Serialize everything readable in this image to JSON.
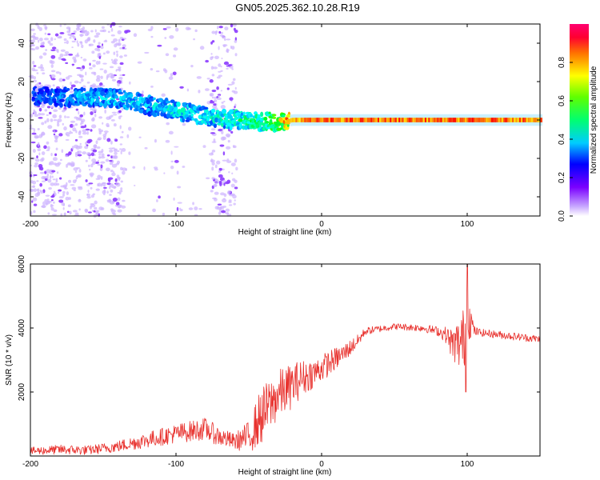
{
  "title": "GN05.2025.362.10.28.R19",
  "colors": {
    "snr_line": "#e8322e",
    "frame": "#000000"
  },
  "chart_data": [
    {
      "type": "heatmap",
      "xlabel": "Height of straight line (km)",
      "ylabel": "Frequency (Hz)",
      "xlim": [
        -200,
        150
      ],
      "ylim": [
        -50,
        50
      ],
      "x_ticks": [
        -200,
        -100,
        0,
        100
      ],
      "y_ticks": [
        -40,
        -20,
        0,
        20,
        40
      ],
      "colorbar": {
        "label": "Normalized spectral amplitude",
        "range": [
          0.0,
          1.0
        ],
        "ticks": [
          0.0,
          0.2,
          0.4,
          0.6,
          0.8
        ],
        "colormap": "hsv-reversed (violet=0 to red/magenta=1)"
      },
      "ridge": {
        "x": [
          -200,
          -180,
          -160,
          -140,
          -120,
          -100,
          -80,
          -60,
          -40,
          -30,
          -20,
          0,
          20,
          50,
          100,
          150
        ],
        "freq": [
          13,
          12,
          12,
          11,
          8,
          5,
          2,
          0,
          -1,
          -1,
          0,
          0,
          0,
          0,
          0,
          0
        ],
        "amplitude": [
          0.2,
          0.25,
          0.3,
          0.3,
          0.3,
          0.35,
          0.35,
          0.4,
          0.45,
          0.6,
          0.9,
          0.95,
          0.95,
          0.95,
          0.95,
          0.95
        ]
      }
    },
    {
      "type": "line",
      "xlabel": "Height of straight line (km)",
      "ylabel": "SNR (10 * v/v)",
      "xlim": [
        -200,
        150
      ],
      "ylim": [
        0,
        6000
      ],
      "x_ticks": [
        -200,
        -100,
        0,
        100
      ],
      "y_ticks": [
        2000,
        4000,
        6000
      ],
      "series": [
        {
          "x": [
            -200,
            -180,
            -160,
            -140,
            -120,
            -100,
            -80,
            -70,
            -60,
            -50,
            -42,
            -30,
            -20,
            -15,
            -5,
            5,
            15,
            25,
            30,
            50,
            70,
            80,
            85,
            90,
            95,
            98,
            100,
            105,
            110,
            120,
            130,
            140,
            150
          ],
          "y": [
            150,
            200,
            180,
            300,
            500,
            700,
            850,
            600,
            450,
            600,
            1200,
            1900,
            2200,
            2400,
            2600,
            2900,
            3200,
            3600,
            3900,
            4050,
            4000,
            3900,
            3800,
            3500,
            3500,
            3700,
            4500,
            3900,
            3850,
            3800,
            3750,
            3700,
            3650
          ],
          "noise": [
            120,
            150,
            150,
            180,
            250,
            300,
            350,
            300,
            250,
            500,
            900,
            800,
            700,
            600,
            450,
            400,
            300,
            200,
            120,
            100,
            120,
            150,
            250,
            500,
            900,
            1000,
            900,
            150,
            120,
            120,
            120,
            120,
            120
          ]
        }
      ]
    }
  ]
}
